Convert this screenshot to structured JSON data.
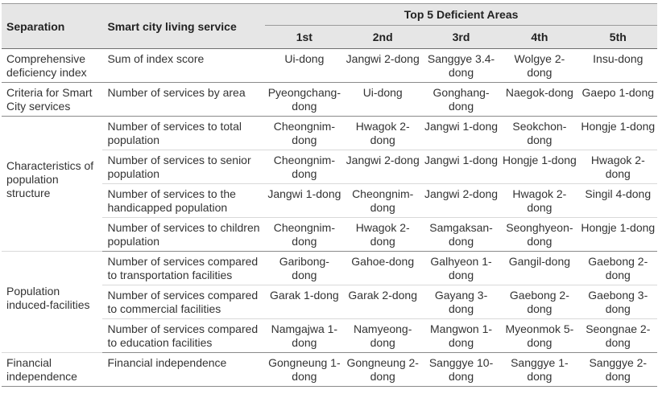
{
  "header": {
    "separation": "Separation",
    "service": "Smart city living service",
    "top5": "Top 5 Deficient Areas",
    "ranks": [
      "1st",
      "2nd",
      "3rd",
      "4th",
      "5th"
    ]
  },
  "groups": [
    {
      "separation": "Comprehensive deficiency index",
      "rows": [
        {
          "service": "Sum of index score",
          "areas": [
            "Ui-dong",
            "Jangwi 2-dong",
            "Sanggye 3.4-dong",
            "Wolgye 2-dong",
            "Insu-dong"
          ]
        }
      ]
    },
    {
      "separation": "Criteria for Smart City services",
      "rows": [
        {
          "service": "Number of services by area",
          "areas": [
            "Pyeongchang-dong",
            "Ui-dong",
            "Gonghang-dong",
            "Naegok-dong",
            "Gaepo 1-dong"
          ]
        }
      ]
    },
    {
      "separation": "Characteristics of population structure",
      "rows": [
        {
          "service": "Number of services to total population",
          "areas": [
            "Cheongnim-dong",
            "Hwagok 2-dong",
            "Jangwi 1-dong",
            "Seokchon-dong",
            "Hongje 1-dong"
          ]
        },
        {
          "service": "Number of services to senior population",
          "areas": [
            "Cheongnim-dong",
            "Jangwi 2-dong",
            "Jangwi 1-dong",
            "Hongje 1-dong",
            "Hwagok 2-dong"
          ]
        },
        {
          "service": "Number of services to the handicapped population",
          "areas": [
            "Jangwi 1-dong",
            "Cheongnim-dong",
            "Jangwi 2-dong",
            "Hwagok 2-dong",
            "Singil 4-dong"
          ]
        },
        {
          "service": "Number of services to children population",
          "areas": [
            "Cheongnim-dong",
            "Hwagok 2-dong",
            "Samgaksan-dong",
            "Seonghyeon-dong",
            "Hongje 1-dong"
          ]
        }
      ]
    },
    {
      "separation": "Population induced-facilities",
      "rows": [
        {
          "service": "Number of services compared to transportation facilities",
          "areas": [
            "Garibong-dong",
            "Gahoe-dong",
            "Galhyeon 1-dong",
            "Gangil-dong",
            "Gaebong 2-dong"
          ]
        },
        {
          "service": "Number of services compared to commercial facilities",
          "areas": [
            "Garak 1-dong",
            "Garak 2-dong",
            "Gayang 3-dong",
            "Gaebong 2-dong",
            "Gaebong 3-dong"
          ]
        },
        {
          "service": "Number of services compared to education facilities",
          "areas": [
            "Namgajwa 1-dong",
            "Namyeong-dong",
            "Mangwon 1-dong",
            "Myeonmok 5-dong",
            "Seongnae 2-dong"
          ]
        }
      ]
    },
    {
      "separation": "Financial independence",
      "rows": [
        {
          "service": "Financial independence",
          "areas": [
            "Gongneung 1-dong",
            "Gongneung 2-dong",
            "Sanggye 10-dong",
            "Sanggye 1-dong",
            "Sanggye 2-dong"
          ]
        }
      ]
    }
  ]
}
